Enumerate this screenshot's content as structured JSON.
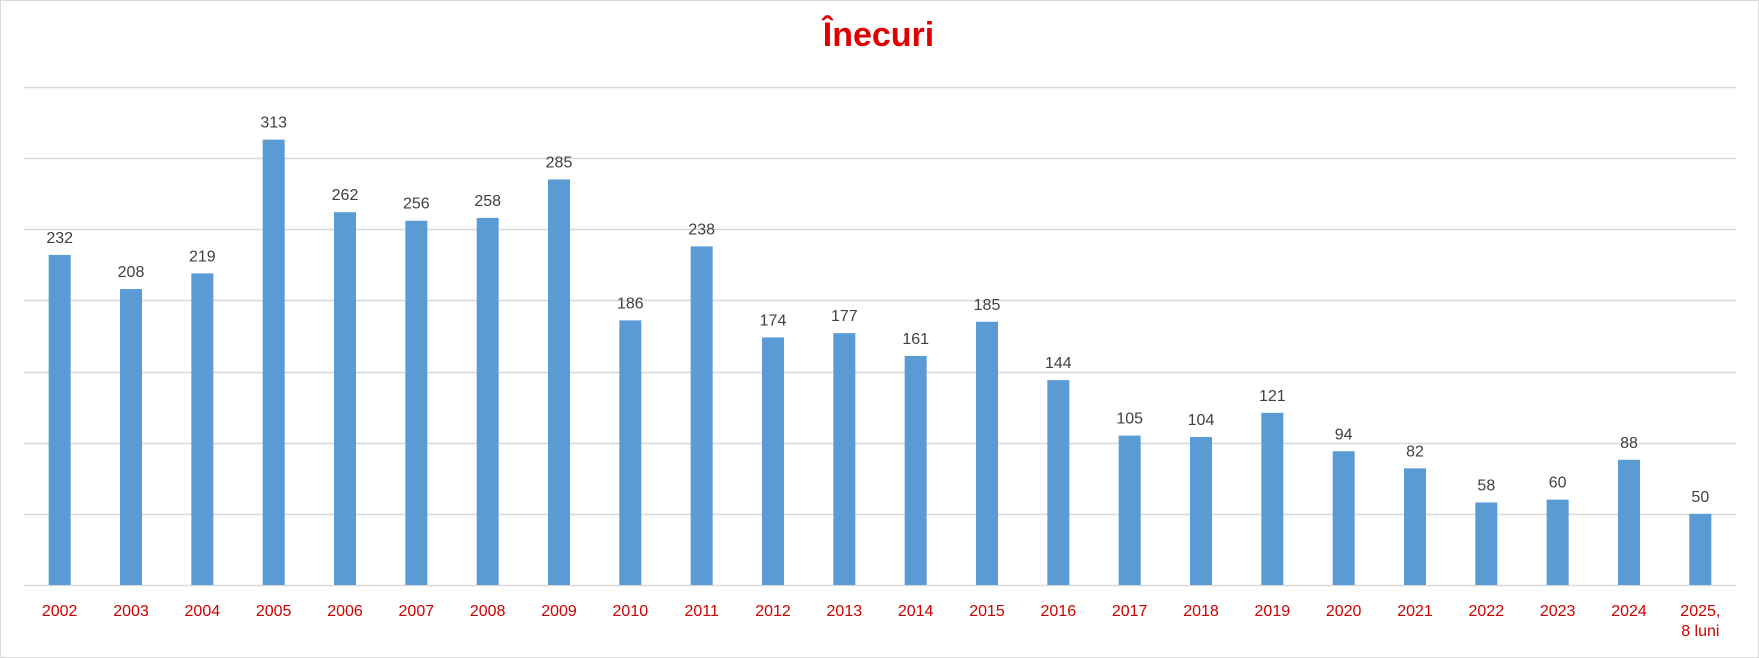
{
  "chart_data": {
    "type": "bar",
    "title": "Înecuri",
    "categories": [
      "2002",
      "2003",
      "2004",
      "2005",
      "2006",
      "2007",
      "2008",
      "2009",
      "2010",
      "2011",
      "2012",
      "2013",
      "2014",
      "2015",
      "2016",
      "2017",
      "2018",
      "2019",
      "2020",
      "2021",
      "2022",
      "2023",
      "2024",
      "2025, 8 luni"
    ],
    "category_lines": [
      [
        "2002"
      ],
      [
        "2003"
      ],
      [
        "2004"
      ],
      [
        "2005"
      ],
      [
        "2006"
      ],
      [
        "2007"
      ],
      [
        "2008"
      ],
      [
        "2009"
      ],
      [
        "2010"
      ],
      [
        "2011"
      ],
      [
        "2012"
      ],
      [
        "2013"
      ],
      [
        "2014"
      ],
      [
        "2015"
      ],
      [
        "2016"
      ],
      [
        "2017"
      ],
      [
        "2018"
      ],
      [
        "2019"
      ],
      [
        "2020"
      ],
      [
        "2021"
      ],
      [
        "2022"
      ],
      [
        "2023"
      ],
      [
        "2024"
      ],
      [
        "2025,",
        "8 luni"
      ]
    ],
    "values": [
      232,
      208,
      219,
      313,
      262,
      256,
      258,
      285,
      186,
      238,
      174,
      177,
      161,
      185,
      144,
      105,
      104,
      121,
      94,
      82,
      58,
      60,
      88,
      50
    ],
    "xlabel": "",
    "ylabel": "",
    "ylim": [
      0,
      350
    ],
    "gridlines": [
      50,
      100,
      150,
      200,
      250,
      300,
      350
    ],
    "grid": true,
    "legend": "none",
    "data_labels": true,
    "colors": {
      "bar": "#5b9bd5",
      "title": "#e00000",
      "tick_label": "#cc0000",
      "data_label": "#404040",
      "grid": "#d9d9d9"
    }
  }
}
